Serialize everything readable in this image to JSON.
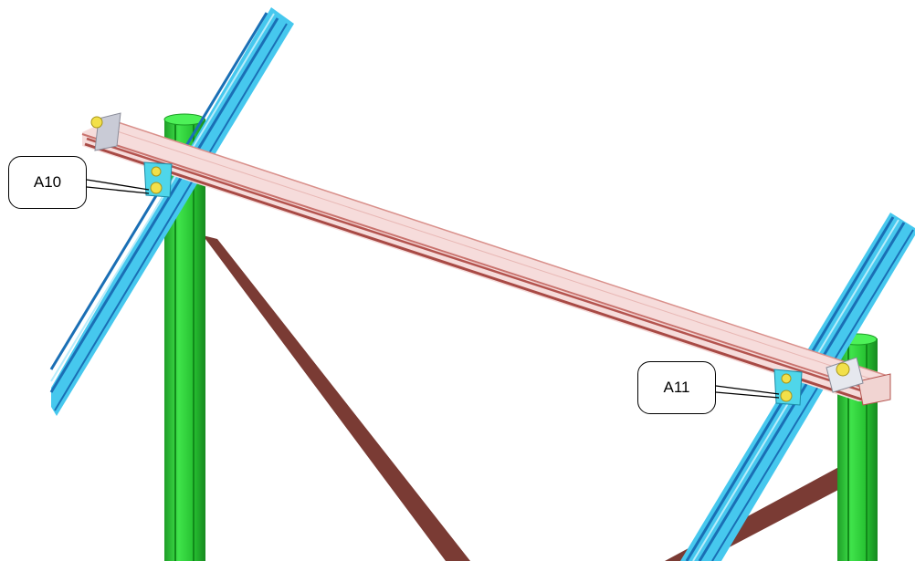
{
  "callouts": [
    {
      "label": "A10"
    },
    {
      "label": "A11"
    }
  ],
  "colors": {
    "upright_post": "#2fd63a",
    "diagonal_rail": "#46c8ee",
    "top_beam": "#e9a9a7",
    "cross_brace": "#7a3b34",
    "fastener": "#f2e04a",
    "bracket": "#d9dbe2"
  },
  "parts": [
    "upright-post-left",
    "upright-post-right",
    "diagonal-rail-left",
    "diagonal-rail-right",
    "top-beam",
    "cross-brace-left",
    "cross-brace-right",
    "bracket-a10",
    "bracket-a11",
    "end-clamp-left",
    "end-clamp-right"
  ]
}
